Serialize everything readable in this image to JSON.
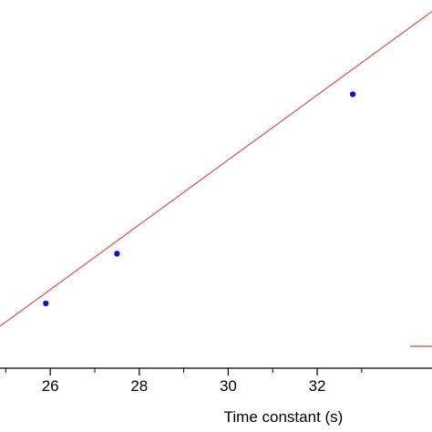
{
  "chart_data": {
    "type": "scatter",
    "xlabel": "Time constant (s)",
    "ylabel": "",
    "title": "",
    "xlim": [
      24.87,
      34.58
    ],
    "ylim": [
      0,
      1
    ],
    "x_ticks": [
      26,
      28,
      30,
      32
    ],
    "x_tick_labels": [
      "26",
      "28",
      "30",
      "32"
    ],
    "x_minor_ticks": [
      25,
      27,
      29,
      31,
      33
    ],
    "grid": false,
    "legend_position": "bottom-right",
    "series": [
      {
        "kind": "points",
        "color": "#1a10c8",
        "x": [
          25.9,
          27.5,
          32.8
        ],
        "y": [
          0.176,
          0.311,
          0.744
        ]
      },
      {
        "kind": "fit-line",
        "color": "#d64545",
        "x": [
          24.87,
          34.58
        ],
        "y": [
          0.114,
          0.969
        ]
      }
    ]
  }
}
